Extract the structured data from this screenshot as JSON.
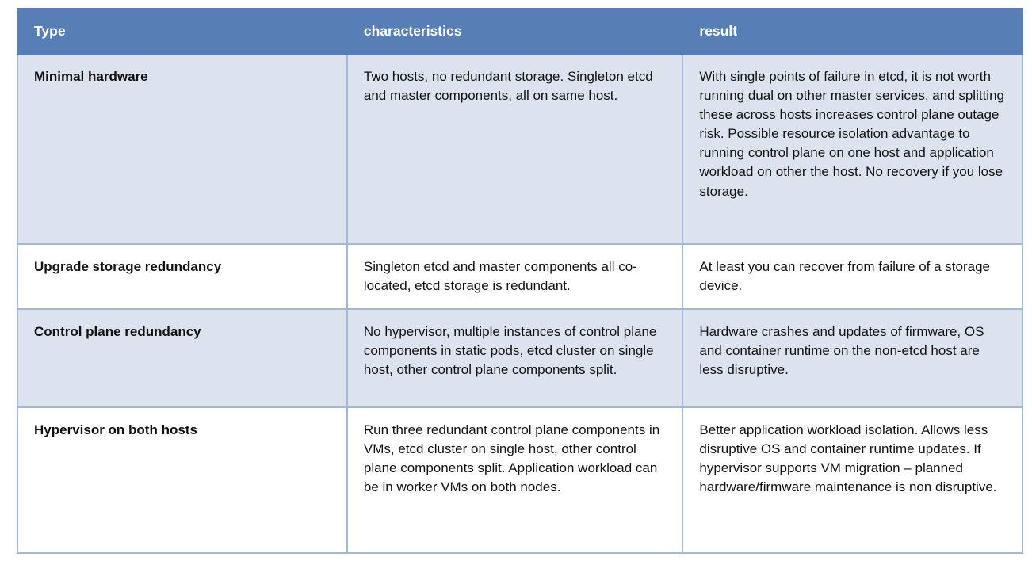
{
  "table": {
    "columns": [
      {
        "key": "type",
        "label": "Type"
      },
      {
        "key": "characteristics",
        "label": "characteristics"
      },
      {
        "key": "result",
        "label": "result"
      }
    ],
    "rows": [
      {
        "type": "Minimal hardware",
        "characteristics": "Two hosts, no redundant storage. Singleton etcd and master components, all on same host.",
        "result": "With single points of failure in etcd, it is not worth running dual on other master services, and splitting these across hosts increases control plane outage risk. Possible resource isolation advantage to running control plane on one host and application workload on other the host. No recovery if you lose storage."
      },
      {
        "type": "Upgrade storage redundancy",
        "characteristics": "Singleton etcd and master components all co-located, etcd storage is redundant.",
        "result": "At least you can recover from failure of a storage device."
      },
      {
        "type": "Control plane redundancy",
        "characteristics": "No hypervisor, multiple instances of control plane components in static pods, etcd cluster on single host, other control plane components split.",
        "result": "Hardware crashes and updates of firmware, OS and container runtime on the non-etcd host are less disruptive."
      },
      {
        "type": "Hypervisor on both hosts",
        "characteristics": "Run three redundant control plane components in VMs, etcd cluster on single host, other control plane components split. Application workload can be in worker VMs on both nodes.",
        "result": "Better application workload isolation. Allows less disruptive OS and container runtime updates. If hypervisor supports VM migration – planned hardware/firmware maintenance is non disruptive."
      }
    ]
  },
  "colors": {
    "header_bg": "#587eb6",
    "header_text": "#ffffff",
    "row_alt_bg": "#dce3ef",
    "row_plain_bg": "#ffffff",
    "border": "#a4b8d4",
    "body_text": "#111111"
  }
}
